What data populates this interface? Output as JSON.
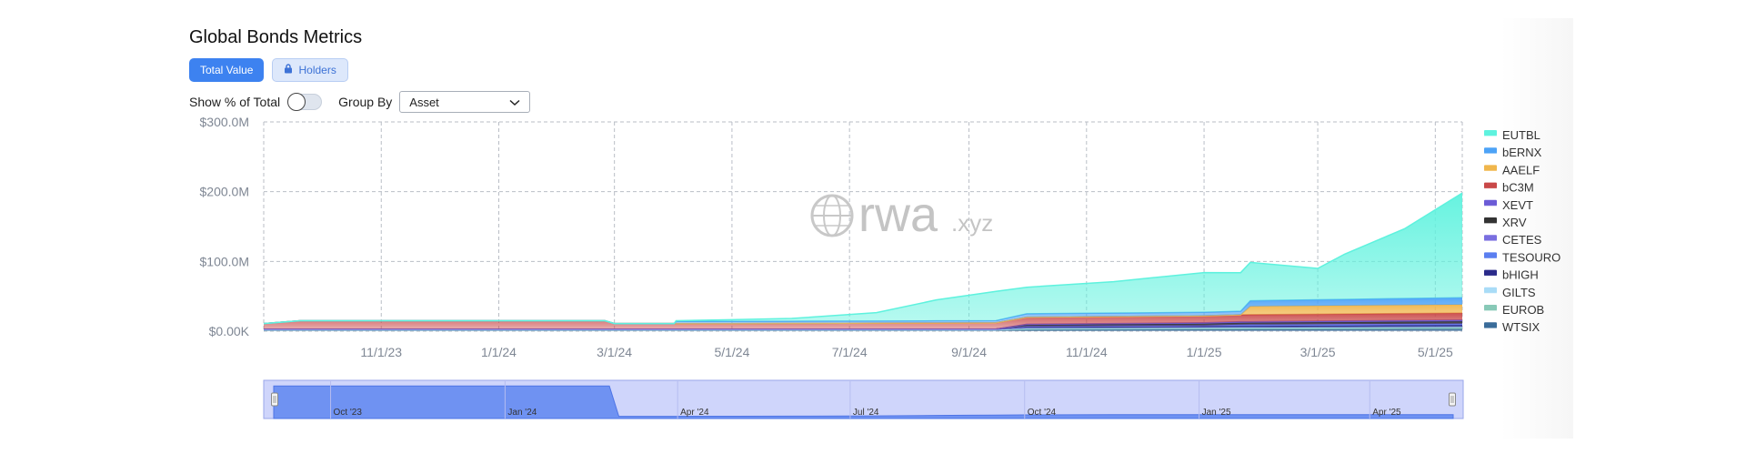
{
  "header": {
    "title": "Global Bonds Metrics"
  },
  "tabs": [
    {
      "label": "Total Value",
      "active": true
    },
    {
      "label": "Holders",
      "locked": true,
      "icon": "lock-icon"
    }
  ],
  "controls": {
    "show_pct_label": "Show % of Total",
    "show_pct_on": false,
    "group_by_label": "Group By",
    "group_by_value": "Asset"
  },
  "watermark": {
    "main": "rwa",
    "suffix": ".xyz"
  },
  "colors": {
    "accent": "#3d82f0",
    "EUTBL": "#5ef2de",
    "bERNX": "#4da3f7",
    "AAELF": "#f0b64c",
    "bC3M": "#c94848",
    "XEVT": "#6b5bd6",
    "XRV": "#333333",
    "CETES": "#7a6fe0",
    "TESOURO": "#5b7ff0",
    "bHIGH": "#2b2b8a",
    "GILTS": "#a9dcf7",
    "EUROB": "#88c9b7",
    "WTSIX": "#3a6c9a"
  },
  "chart_data": {
    "type": "area",
    "stacked": true,
    "xlabel": "",
    "ylabel": "",
    "x_range": [
      "2023-09-01",
      "2025-05-15"
    ],
    "ylim": [
      0,
      300
    ],
    "y_unit": "M USD",
    "y_ticks": [
      {
        "value": 0,
        "label": "$0.00K"
      },
      {
        "value": 100,
        "label": "$100.0M"
      },
      {
        "value": 200,
        "label": "$200.0M"
      },
      {
        "value": 300,
        "label": "$300.0M"
      }
    ],
    "x_ticks": [
      {
        "date": "2023-11-01",
        "label": "11/1/23"
      },
      {
        "date": "2024-01-01",
        "label": "1/1/24"
      },
      {
        "date": "2024-03-01",
        "label": "3/1/24"
      },
      {
        "date": "2024-05-01",
        "label": "5/1/24"
      },
      {
        "date": "2024-07-01",
        "label": "7/1/24"
      },
      {
        "date": "2024-09-01",
        "label": "9/1/24"
      },
      {
        "date": "2024-11-01",
        "label": "11/1/24"
      },
      {
        "date": "2025-01-01",
        "label": "1/1/25"
      },
      {
        "date": "2025-03-01",
        "label": "3/1/25"
      },
      {
        "date": "2025-05-01",
        "label": "5/1/25"
      }
    ],
    "grid": true,
    "legend_position": "right",
    "series": [
      {
        "name": "WTSIX",
        "points": [
          [
            "2023-09-01",
            2
          ],
          [
            "2024-09-01",
            2
          ],
          [
            "2024-10-01",
            2
          ],
          [
            "2025-05-15",
            3
          ]
        ]
      },
      {
        "name": "EUROB",
        "points": [
          [
            "2023-09-01",
            0
          ],
          [
            "2024-09-15",
            0
          ],
          [
            "2024-10-01",
            1
          ],
          [
            "2025-05-15",
            2
          ]
        ]
      },
      {
        "name": "GILTS",
        "points": [
          [
            "2023-09-01",
            0
          ],
          [
            "2024-09-15",
            0
          ],
          [
            "2024-10-01",
            1
          ],
          [
            "2025-05-15",
            1
          ]
        ]
      },
      {
        "name": "bHIGH",
        "points": [
          [
            "2023-09-01",
            1
          ],
          [
            "2024-09-15",
            1
          ],
          [
            "2024-10-01",
            2
          ],
          [
            "2025-05-15",
            3
          ]
        ]
      },
      {
        "name": "TESOURO",
        "points": [
          [
            "2023-09-01",
            0
          ],
          [
            "2024-09-15",
            0
          ],
          [
            "2024-10-01",
            1
          ],
          [
            "2025-05-15",
            1
          ]
        ]
      },
      {
        "name": "CETES",
        "points": [
          [
            "2023-09-01",
            0
          ],
          [
            "2025-01-01",
            0
          ],
          [
            "2025-01-20",
            1
          ],
          [
            "2025-05-15",
            1
          ]
        ]
      },
      {
        "name": "XRV",
        "points": [
          [
            "2023-09-01",
            0
          ],
          [
            "2024-09-15",
            0
          ],
          [
            "2024-10-01",
            2
          ],
          [
            "2025-05-15",
            3
          ]
        ]
      },
      {
        "name": "XEVT",
        "points": [
          [
            "2023-09-01",
            0
          ],
          [
            "2024-09-15",
            0
          ],
          [
            "2024-10-01",
            1
          ],
          [
            "2025-05-15",
            2
          ]
        ]
      },
      {
        "name": "bC3M",
        "points": [
          [
            "2023-09-01",
            8
          ],
          [
            "2023-09-20",
            12
          ],
          [
            "2024-02-25",
            12
          ],
          [
            "2024-03-01",
            8
          ],
          [
            "2024-05-01",
            8
          ],
          [
            "2024-09-15",
            9
          ],
          [
            "2024-10-01",
            10
          ],
          [
            "2025-01-01",
            10
          ],
          [
            "2025-05-15",
            10
          ]
        ]
      },
      {
        "name": "AAELF",
        "points": [
          [
            "2023-09-01",
            0
          ],
          [
            "2025-01-20",
            0
          ],
          [
            "2025-01-25",
            12
          ],
          [
            "2025-05-15",
            12
          ]
        ]
      },
      {
        "name": "bERNX",
        "points": [
          [
            "2023-09-01",
            0
          ],
          [
            "2024-04-01",
            0
          ],
          [
            "2024-04-02",
            3
          ],
          [
            "2024-09-15",
            3
          ],
          [
            "2024-10-01",
            5
          ],
          [
            "2025-01-20",
            5
          ],
          [
            "2025-01-25",
            8
          ],
          [
            "2025-05-15",
            10
          ]
        ]
      },
      {
        "name": "EUTBL",
        "points": [
          [
            "2023-09-01",
            0
          ],
          [
            "2024-04-01",
            0
          ],
          [
            "2024-04-02",
            1
          ],
          [
            "2024-06-01",
            4
          ],
          [
            "2024-07-15",
            12
          ],
          [
            "2024-08-15",
            30
          ],
          [
            "2024-09-15",
            42
          ],
          [
            "2024-10-01",
            38
          ],
          [
            "2024-11-15",
            45
          ],
          [
            "2025-01-01",
            57
          ],
          [
            "2025-01-25",
            55
          ],
          [
            "2025-03-01",
            45
          ],
          [
            "2025-03-15",
            65
          ],
          [
            "2025-04-15",
            100
          ],
          [
            "2025-05-15",
            150
          ]
        ]
      }
    ],
    "legend": [
      "EUTBL",
      "bERNX",
      "AAELF",
      "bC3M",
      "XEVT",
      "XRV",
      "CETES",
      "TESOURO",
      "bHIGH",
      "GILTS",
      "EUROB",
      "WTSIX"
    ],
    "navigator": {
      "labels": [
        "Oct '23",
        "Jan '24",
        "Apr '24",
        "Jul '24",
        "Oct '24",
        "Jan '25",
        "Apr '25"
      ],
      "label_dates": [
        "2023-10-01",
        "2024-01-01",
        "2024-04-01",
        "2024-07-01",
        "2024-10-01",
        "2025-01-01",
        "2025-04-01"
      ]
    }
  }
}
